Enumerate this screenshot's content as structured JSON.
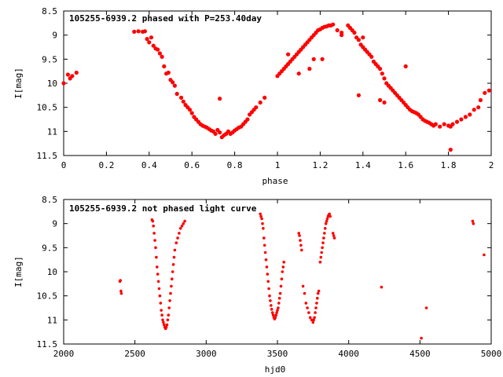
{
  "chart_data": [
    {
      "type": "scatter",
      "title": "105255-6939.2 phased with P=253.40day",
      "xlabel": "phase",
      "ylabel": "I[mag]",
      "xlim": [
        0,
        2
      ],
      "ylim": [
        8.5,
        11.5
      ],
      "y_inverted": true,
      "grid": false,
      "legend": "none",
      "marker_color": "#ff0000",
      "x_ticks": [
        "0",
        "0.2",
        "0.4",
        "0.6",
        "0.8",
        "1",
        "1.2",
        "1.4",
        "1.6",
        "1.8",
        "2"
      ],
      "y_ticks": [
        "8.5",
        "9",
        "9.5",
        "10",
        "10.5",
        "11",
        "11.5"
      ],
      "series": [
        {
          "x": [
            0.0,
            0.02,
            0.03,
            0.04,
            0.06,
            0.33,
            0.35,
            0.37,
            0.38,
            0.39,
            0.4,
            0.41,
            0.42,
            0.43,
            0.44,
            0.45,
            0.46,
            0.47,
            0.48,
            0.49,
            0.5,
            0.51,
            0.52,
            0.53,
            0.55,
            0.56,
            0.57,
            0.58,
            0.59,
            0.6,
            0.61,
            0.62,
            0.63,
            0.64,
            0.65,
            0.66,
            0.67,
            0.68,
            0.69,
            0.7,
            0.71,
            0.72,
            0.73,
            0.74,
            0.75,
            0.76,
            0.77,
            0.78,
            0.79,
            0.8,
            0.81,
            0.82,
            0.83,
            0.84,
            0.85,
            0.86,
            0.87,
            0.88,
            0.89,
            0.9,
            0.92,
            0.94,
            1.0,
            1.01,
            1.02,
            1.03,
            1.04,
            1.05,
            1.06,
            1.07,
            1.08,
            1.09,
            1.1,
            1.11,
            1.12,
            1.13,
            1.14,
            1.15,
            1.16,
            1.17,
            1.18,
            1.19,
            1.2,
            1.21,
            1.22,
            1.23,
            1.24,
            1.25,
            1.26,
            1.28,
            1.3,
            1.33,
            1.34,
            1.35,
            1.36,
            1.37,
            1.38,
            1.39,
            1.4,
            1.41,
            1.42,
            1.43,
            1.44,
            1.45,
            1.46,
            1.47,
            1.48,
            1.49,
            1.5,
            1.51,
            1.52,
            1.53,
            1.54,
            1.55,
            1.56,
            1.57,
            1.58,
            1.59,
            1.6,
            1.61,
            1.62,
            1.63,
            1.64,
            1.65,
            1.66,
            1.67,
            1.68,
            1.69,
            1.7,
            1.71,
            1.72,
            1.73,
            1.74,
            1.76,
            1.78,
            1.8,
            1.81,
            1.82,
            1.84,
            1.86,
            1.88,
            1.9,
            1.92,
            1.94,
            1.95,
            1.97,
            1.99,
            1.21,
            1.1,
            1.05,
            1.15,
            1.38,
            1.6,
            1.48,
            1.5,
            1.81,
            0.73,
            1.4,
            1.3,
            1.17
          ],
          "y": [
            10.0,
            9.82,
            9.9,
            9.85,
            9.78,
            8.93,
            8.92,
            8.93,
            8.92,
            9.08,
            9.15,
            9.05,
            9.22,
            9.28,
            9.3,
            9.38,
            9.45,
            9.65,
            9.8,
            9.78,
            9.93,
            9.98,
            10.05,
            10.22,
            10.3,
            10.38,
            10.45,
            10.5,
            10.55,
            10.62,
            10.7,
            10.75,
            10.8,
            10.85,
            10.88,
            10.9,
            10.92,
            10.95,
            10.98,
            11.0,
            11.05,
            10.97,
            11.02,
            11.12,
            11.08,
            11.05,
            11.0,
            11.05,
            11.02,
            10.98,
            10.95,
            10.92,
            10.9,
            10.85,
            10.8,
            10.75,
            10.65,
            10.6,
            10.55,
            10.5,
            10.4,
            10.3,
            9.85,
            9.8,
            9.75,
            9.7,
            9.65,
            9.6,
            9.55,
            9.5,
            9.45,
            9.4,
            9.35,
            9.3,
            9.25,
            9.2,
            9.15,
            9.1,
            9.05,
            9.0,
            8.95,
            8.9,
            8.88,
            8.85,
            8.83,
            8.82,
            8.8,
            8.8,
            8.78,
            8.9,
            9.0,
            8.8,
            8.85,
            8.9,
            8.95,
            9.05,
            9.1,
            9.2,
            9.25,
            9.3,
            9.35,
            9.4,
            9.45,
            9.55,
            9.6,
            9.65,
            9.7,
            9.8,
            9.9,
            10.0,
            10.05,
            10.1,
            10.15,
            10.2,
            10.25,
            10.3,
            10.35,
            10.4,
            10.45,
            10.5,
            10.55,
            10.58,
            10.6,
            10.62,
            10.65,
            10.7,
            10.75,
            10.78,
            10.8,
            10.82,
            10.85,
            10.88,
            10.85,
            10.9,
            10.85,
            10.88,
            10.9,
            10.85,
            10.8,
            10.75,
            10.7,
            10.65,
            10.55,
            10.5,
            10.35,
            10.2,
            10.15,
            9.5,
            9.8,
            9.4,
            9.7,
            10.25,
            9.65,
            10.35,
            10.4,
            11.38,
            10.32,
            9.05,
            8.95,
            9.5
          ]
        }
      ]
    },
    {
      "type": "scatter",
      "title": "105255-6939.2 not phased light curve",
      "xlabel": "hjd0",
      "ylabel": "I[mag]",
      "xlim": [
        2000,
        5000
      ],
      "ylim": [
        8.5,
        11.5
      ],
      "y_inverted": true,
      "grid": false,
      "legend": "none",
      "marker_color": "#ff0000",
      "x_ticks": [
        "2000",
        "2500",
        "3000",
        "3500",
        "4000",
        "4500",
        "5000"
      ],
      "y_ticks": [
        "8.5",
        "9",
        "9.5",
        "10",
        "10.5",
        "11",
        "11.5"
      ],
      "series": [
        {
          "x": [
            2395,
            2398,
            2402,
            2405,
            2620,
            2625,
            2630,
            2635,
            2640,
            2645,
            2650,
            2655,
            2660,
            2665,
            2670,
            2675,
            2680,
            2685,
            2690,
            2695,
            2700,
            2705,
            2710,
            2715,
            2720,
            2725,
            2730,
            2735,
            2740,
            2745,
            2750,
            2755,
            2760,
            2765,
            2770,
            2775,
            2780,
            2790,
            2800,
            2810,
            2820,
            2830,
            2840,
            2850,
            3380,
            3385,
            3390,
            3395,
            3400,
            3405,
            3410,
            3415,
            3420,
            3425,
            3430,
            3435,
            3440,
            3445,
            3450,
            3455,
            3460,
            3465,
            3470,
            3475,
            3480,
            3485,
            3490,
            3495,
            3500,
            3505,
            3510,
            3515,
            3520,
            3525,
            3530,
            3535,
            3540,
            3545,
            3650,
            3655,
            3660,
            3665,
            3670,
            3680,
            3690,
            3700,
            3710,
            3720,
            3730,
            3740,
            3750,
            3755,
            3760,
            3765,
            3770,
            3775,
            3780,
            3785,
            3790,
            3800,
            3805,
            3810,
            3815,
            3820,
            3825,
            3830,
            3835,
            3840,
            3845,
            3850,
            3855,
            3860,
            3865,
            3870,
            3890,
            3895,
            3900,
            4230,
            4510,
            4545,
            4870,
            4875,
            4950
          ],
          "y": [
            10.2,
            10.18,
            10.4,
            10.45,
            8.92,
            8.95,
            9.05,
            9.2,
            9.35,
            9.5,
            9.7,
            9.9,
            10.05,
            10.2,
            10.35,
            10.5,
            10.65,
            10.8,
            10.9,
            11.0,
            11.05,
            11.1,
            11.15,
            11.18,
            11.15,
            11.1,
            11.0,
            10.9,
            10.75,
            10.6,
            10.45,
            10.3,
            10.15,
            10.0,
            9.85,
            9.7,
            9.55,
            9.4,
            9.3,
            9.2,
            9.1,
            9.05,
            9.0,
            8.95,
            8.8,
            8.85,
            8.9,
            9.0,
            9.1,
            9.3,
            9.45,
            9.6,
            9.75,
            9.9,
            10.05,
            10.2,
            10.35,
            10.5,
            10.6,
            10.7,
            10.78,
            10.85,
            10.9,
            10.95,
            10.98,
            10.95,
            10.9,
            10.85,
            10.8,
            10.75,
            10.65,
            10.55,
            10.45,
            10.3,
            10.15,
            10.0,
            9.9,
            9.8,
            9.2,
            9.25,
            9.35,
            9.45,
            9.55,
            10.3,
            10.45,
            10.65,
            10.75,
            10.85,
            10.95,
            11.0,
            11.05,
            11.0,
            10.95,
            10.85,
            10.75,
            10.65,
            10.55,
            10.45,
            10.4,
            9.8,
            9.7,
            9.6,
            9.5,
            9.4,
            9.3,
            9.2,
            9.1,
            9.0,
            8.95,
            8.9,
            8.85,
            8.82,
            8.8,
            8.85,
            9.2,
            9.25,
            9.3,
            10.32,
            11.38,
            10.75,
            8.95,
            9.0,
            9.65
          ]
        }
      ]
    }
  ]
}
